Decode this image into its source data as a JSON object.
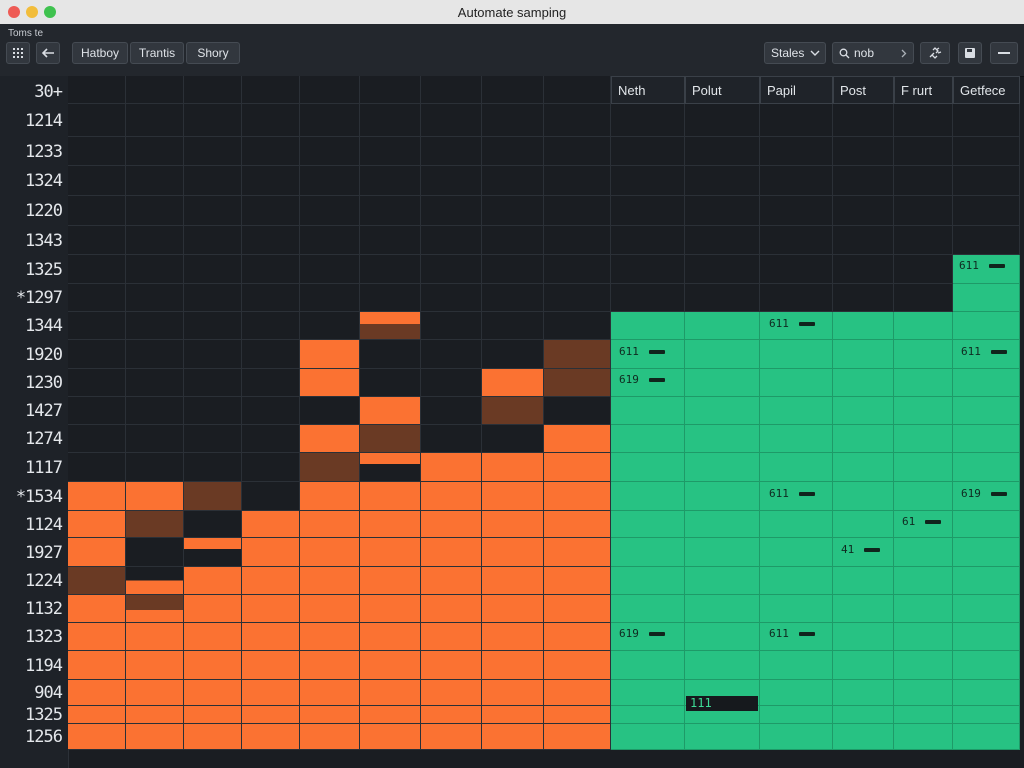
{
  "window": {
    "title": "Automate samping"
  },
  "toolbar": {
    "small_label": "Toms te",
    "grid_icon": "grid-icon",
    "back_icon": "arrow-left-icon",
    "tabs": [
      "Hatboy",
      "Trantis",
      "Shory"
    ],
    "dropdown_label": "Stales",
    "search_text": "nob",
    "search_icon": "search-icon",
    "chevron_icon": "chevron-right-icon",
    "link_icon": "link-icon",
    "save_icon": "save-icon",
    "minus_icon": "minus-icon"
  },
  "header_row_label": "30+",
  "columns": [
    "Neth",
    "Polut",
    "Papil",
    "Post",
    "F rurt",
    "Getfece"
  ],
  "row_labels": [
    "1214",
    "1233",
    "1324",
    "1220",
    "1343",
    "1325",
    "*1297",
    "1344",
    "1920",
    "1230",
    "1427",
    "1274",
    "1117",
    "*1534",
    "1124",
    "1927",
    "1224",
    "1132",
    "1323",
    "1194",
    "904",
    "1325",
    "1256"
  ],
  "tags": [
    {
      "text": "611"
    },
    {
      "text": "611"
    },
    {
      "text": "611"
    },
    {
      "text": "611"
    },
    {
      "text": "619"
    },
    {
      "text": "611"
    },
    {
      "text": "619"
    },
    {
      "text": "61"
    },
    {
      "text": "41"
    },
    {
      "text": "619"
    },
    {
      "text": "611"
    }
  ],
  "dark_value": "111",
  "colors": {
    "orange": "#fb7232",
    "brown": "#6a3a24",
    "green": "#27c283",
    "grid_bg": "#1a1d22"
  }
}
